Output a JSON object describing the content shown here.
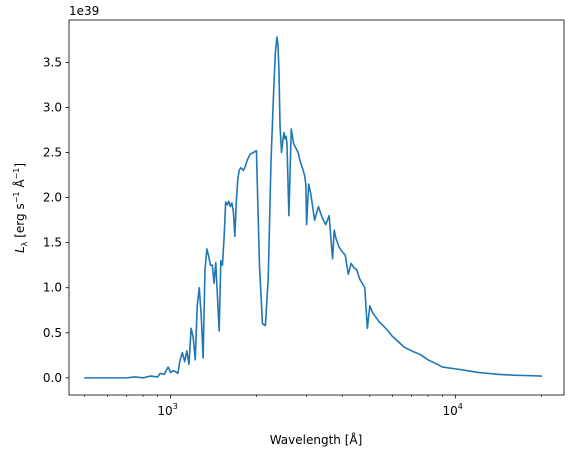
{
  "chart_data": {
    "type": "line",
    "title": "",
    "xlabel": "Wavelength [Å]",
    "ylabel_parts": {
      "symbol": "L",
      "subscript": "λ",
      "unit_open": " [erg s",
      "exp1": "−1",
      "unit_mid": " Å",
      "exp2": "−1",
      "unit_close": "]"
    },
    "y_offset_label": "1e39",
    "xscale": "log",
    "xlim": [
      440,
      24000
    ],
    "ylim": [
      -0.19,
      3.97
    ],
    "x_major_ticks": [
      {
        "value": 1000,
        "base": "10",
        "exp": "3"
      },
      {
        "value": 10000,
        "base": "10",
        "exp": "4"
      }
    ],
    "x_minor_ticks": [
      500,
      600,
      700,
      800,
      900,
      2000,
      3000,
      4000,
      5000,
      6000,
      7000,
      8000,
      9000,
      20000
    ],
    "y_ticks": [
      {
        "value": 0.0,
        "label": "0.0"
      },
      {
        "value": 0.5,
        "label": "0.5"
      },
      {
        "value": 1.0,
        "label": "1.0"
      },
      {
        "value": 1.5,
        "label": "1.5"
      },
      {
        "value": 2.0,
        "label": "2.0"
      },
      {
        "value": 2.5,
        "label": "2.5"
      },
      {
        "value": 3.0,
        "label": "3.0"
      },
      {
        "value": 3.5,
        "label": "3.5"
      }
    ],
    "grid": false,
    "legend": "none",
    "series": [
      {
        "color": "#1f77b4",
        "x": [
          500,
          600,
          700,
          750,
          800,
          850,
          900,
          920,
          950,
          980,
          1000,
          1020,
          1040,
          1060,
          1080,
          1100,
          1120,
          1140,
          1160,
          1180,
          1200,
          1220,
          1240,
          1260,
          1280,
          1300,
          1320,
          1340,
          1360,
          1380,
          1400,
          1420,
          1440,
          1460,
          1480,
          1500,
          1520,
          1540,
          1560,
          1580,
          1600,
          1620,
          1640,
          1660,
          1680,
          1700,
          1720,
          1740,
          1760,
          1780,
          1800,
          1830,
          1860,
          1900,
          1950,
          2000,
          2050,
          2100,
          2150,
          2200,
          2250,
          2300,
          2330,
          2360,
          2380,
          2400,
          2420,
          2450,
          2480,
          2500,
          2520,
          2540,
          2560,
          2600,
          2650,
          2700,
          2750,
          2800,
          2850,
          2900,
          2950,
          2980,
          3000,
          3050,
          3100,
          3200,
          3300,
          3400,
          3500,
          3600,
          3650,
          3700,
          3750,
          3800,
          3900,
          4000,
          4100,
          4200,
          4300,
          4400,
          4500,
          4600,
          4700,
          4800,
          4900,
          5000,
          5100,
          5200,
          5400,
          5600,
          5800,
          6000,
          6200,
          6400,
          6600,
          7000,
          7500,
          8000,
          8500,
          9000,
          10000,
          11000,
          12000,
          13000,
          14000,
          16000,
          18000,
          20000
        ],
        "y": [
          0.0,
          0.0,
          0.0,
          0.01,
          0.0,
          0.02,
          0.01,
          0.05,
          0.04,
          0.12,
          0.06,
          0.08,
          0.07,
          0.05,
          0.2,
          0.28,
          0.18,
          0.3,
          0.15,
          0.55,
          0.45,
          0.2,
          0.8,
          1.0,
          0.7,
          0.22,
          1.2,
          1.43,
          1.35,
          1.25,
          1.25,
          1.05,
          1.28,
          0.9,
          0.52,
          1.3,
          1.25,
          1.55,
          1.95,
          1.92,
          1.96,
          1.9,
          1.94,
          1.85,
          1.57,
          1.95,
          2.2,
          2.3,
          2.33,
          2.32,
          2.3,
          2.35,
          2.42,
          2.48,
          2.5,
          2.52,
          1.25,
          0.6,
          0.58,
          1.1,
          2.4,
          3.2,
          3.6,
          3.78,
          3.7,
          3.4,
          2.8,
          2.5,
          2.65,
          2.72,
          2.65,
          2.68,
          2.6,
          1.8,
          2.76,
          2.6,
          2.55,
          2.5,
          2.4,
          2.33,
          2.25,
          2.15,
          1.7,
          2.15,
          2.05,
          1.75,
          1.9,
          1.78,
          1.7,
          1.8,
          1.55,
          1.32,
          1.64,
          1.55,
          1.45,
          1.4,
          1.36,
          1.15,
          1.27,
          1.22,
          1.2,
          1.1,
          1.05,
          1.0,
          0.55,
          0.8,
          0.73,
          0.69,
          0.62,
          0.57,
          0.52,
          0.46,
          0.42,
          0.38,
          0.34,
          0.3,
          0.26,
          0.2,
          0.16,
          0.12,
          0.1,
          0.08,
          0.06,
          0.05,
          0.04,
          0.03,
          0.025,
          0.02
        ]
      }
    ]
  }
}
